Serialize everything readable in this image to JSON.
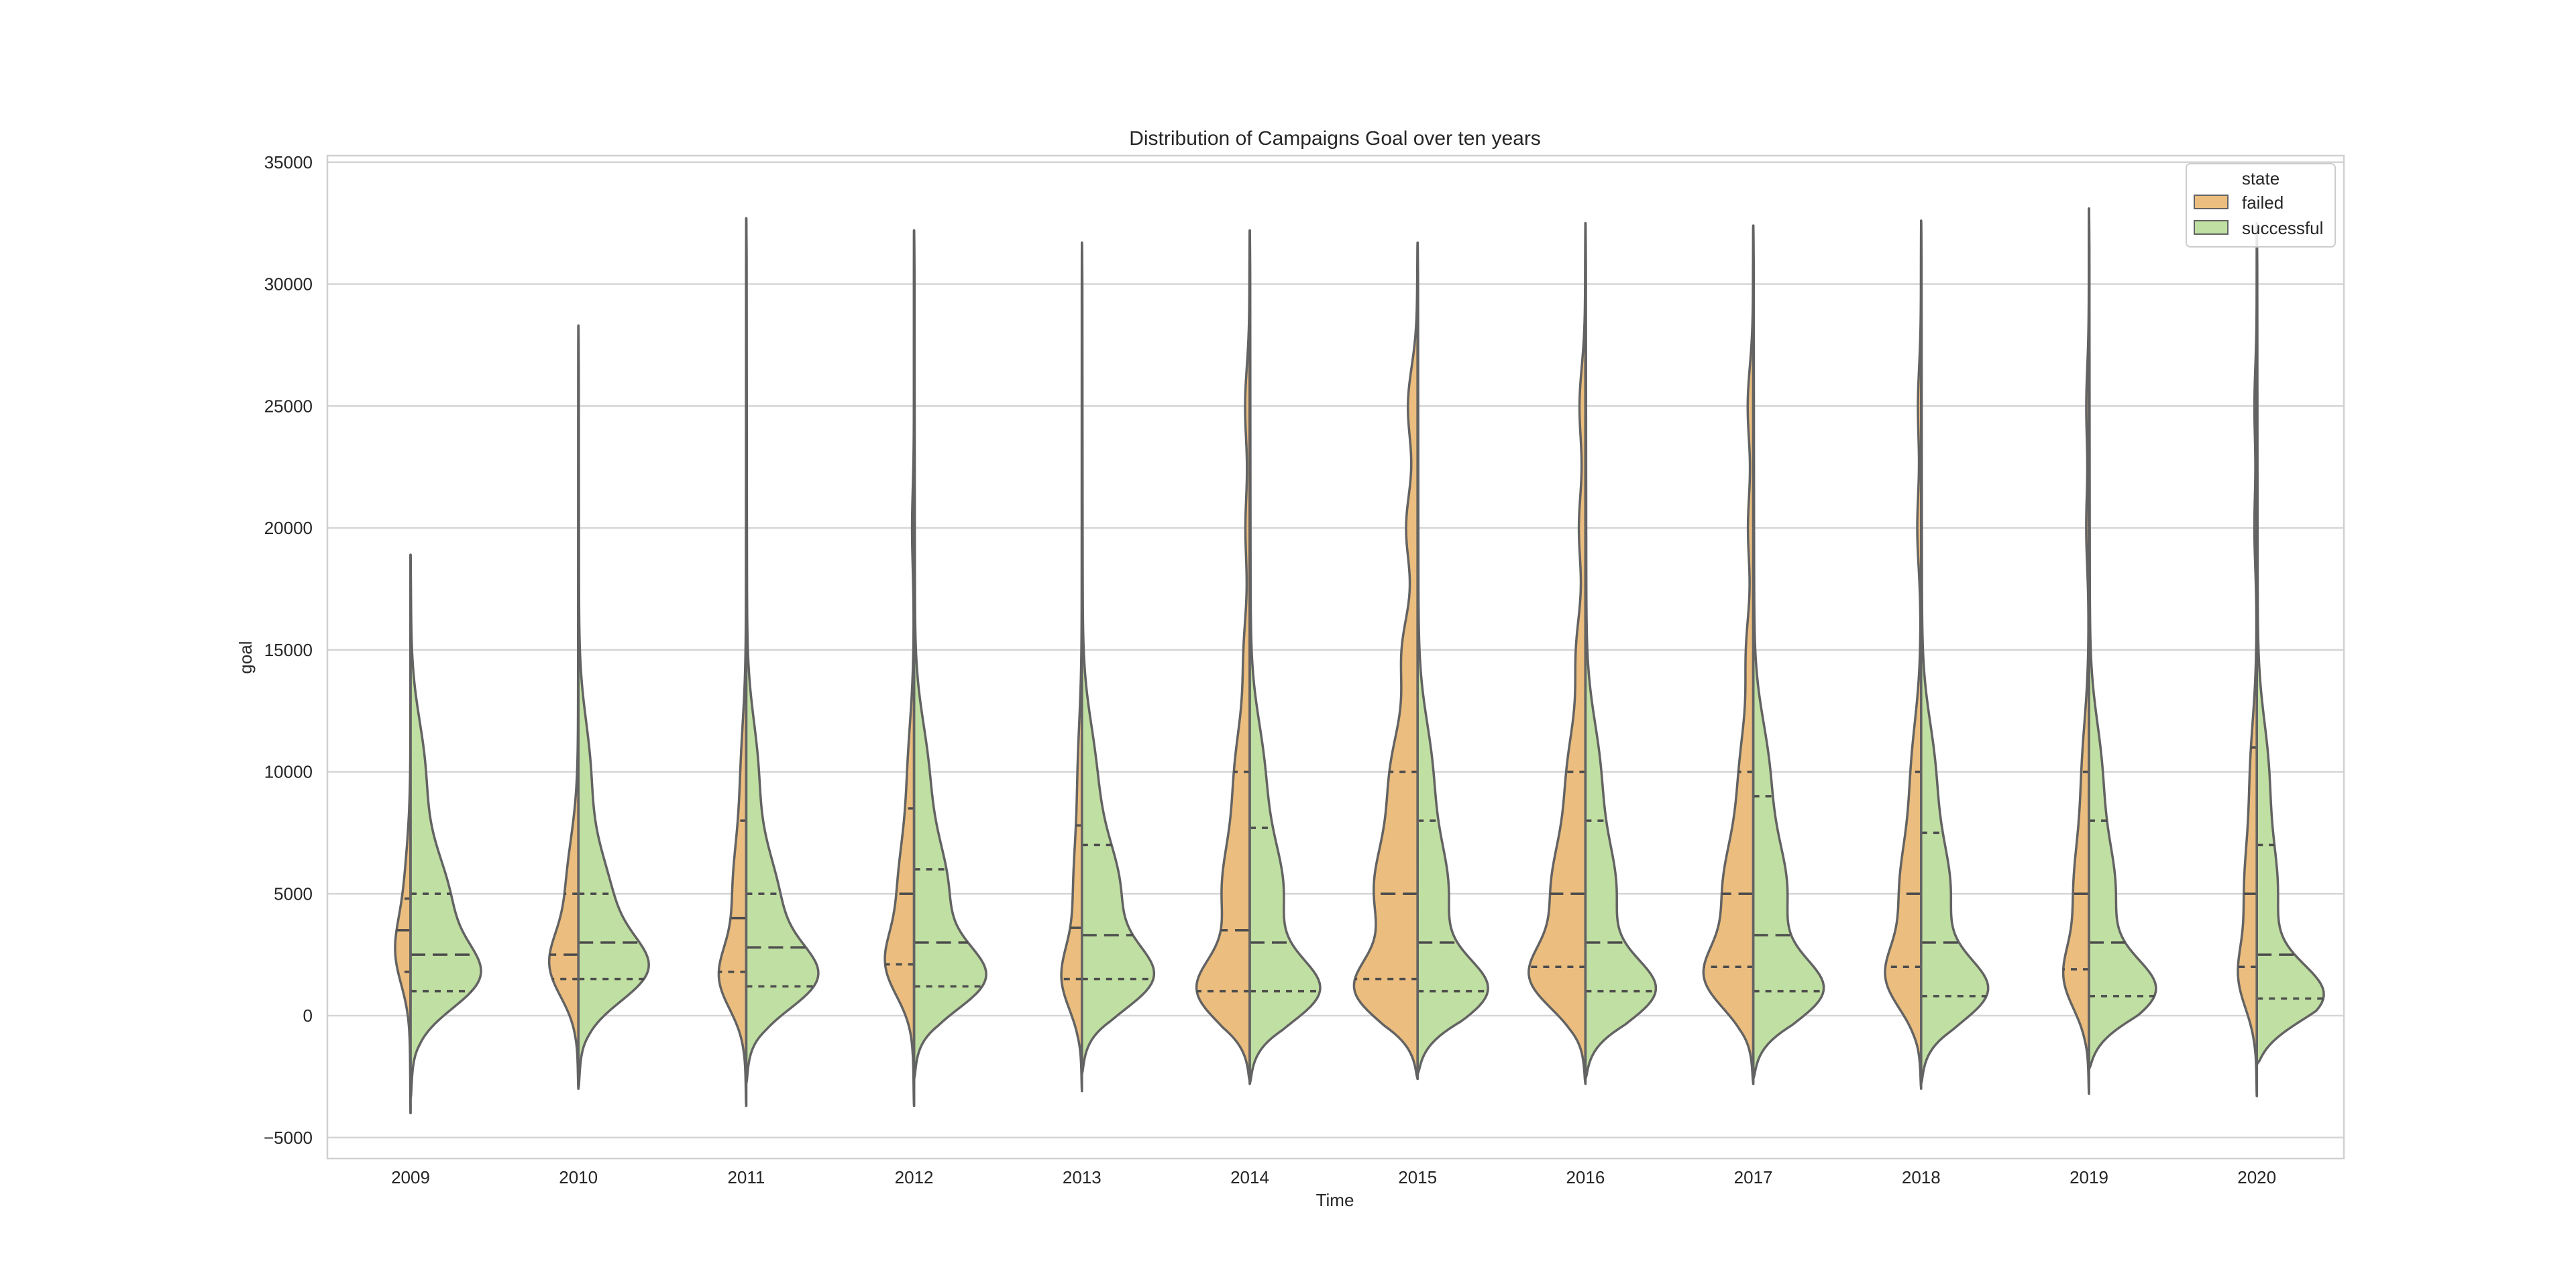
{
  "chart_data": {
    "type": "split-violin",
    "title": "Distribution of Campaigns Goal over ten years",
    "xlabel": "Time",
    "ylabel": "goal",
    "ylim": [
      -6000,
      35500
    ],
    "yticks": [
      -5000,
      0,
      5000,
      10000,
      15000,
      20000,
      25000,
      30000,
      35000
    ],
    "ytick_labels": [
      "−5000",
      "0",
      "5000",
      "10000",
      "15000",
      "20000",
      "25000",
      "30000",
      "35000"
    ],
    "grid": "horizontal",
    "legend": {
      "title": "state",
      "position": "top-right"
    },
    "colors": {
      "failed": "#ebbd7e",
      "successful": "#c0dfa2",
      "outline": "#636363",
      "grid": "#d5d5d5"
    },
    "categories": [
      "2009",
      "2010",
      "2011",
      "2012",
      "2013",
      "2014",
      "2015",
      "2016",
      "2017",
      "2018",
      "2019",
      "2020"
    ],
    "series": [
      {
        "name": "failed",
        "color": "#ebbd7e",
        "stats": [
          {
            "min": -4000,
            "max": 18900,
            "q1": 1800,
            "median": 3500,
            "q3": 4800,
            "peak_width": 0.09,
            "peaks": [
              [
                2500,
                1.0
              ],
              [
                4500,
                0.6
              ]
            ]
          },
          {
            "min": -3000,
            "max": 28300,
            "q1": 1500,
            "median": 2500,
            "q3": 5000,
            "peak_width": 0.17,
            "peaks": [
              [
                2000,
                1.0
              ],
              [
                5000,
                0.5
              ]
            ]
          },
          {
            "min": -3700,
            "max": 32700,
            "q1": 1800,
            "median": 4000,
            "q3": 8000,
            "peak_width": 0.16,
            "peaks": [
              [
                1500,
                1.0
              ],
              [
                5000,
                0.55
              ],
              [
                10000,
                0.2
              ]
            ]
          },
          {
            "min": -3700,
            "max": 32200,
            "q1": 2100,
            "median": 5000,
            "q3": 8500,
            "peak_width": 0.17,
            "peaks": [
              [
                2000,
                1.0
              ],
              [
                5000,
                0.7
              ],
              [
                10000,
                0.25
              ],
              [
                20000,
                0.08
              ]
            ]
          },
          {
            "min": -3100,
            "max": 31700,
            "q1": 1500,
            "median": 3600,
            "q3": 7800,
            "peak_width": 0.12,
            "peaks": [
              [
                1500,
                1.0
              ],
              [
                5000,
                0.45
              ],
              [
                10000,
                0.2
              ]
            ]
          },
          {
            "min": -2700,
            "max": 32200,
            "q1": 1000,
            "median": 3500,
            "q3": 10000,
            "peak_width": 0.31,
            "peaks": [
              [
                1000,
                1.0
              ],
              [
                5000,
                0.55
              ],
              [
                10000,
                0.28
              ],
              [
                15000,
                0.1
              ],
              [
                20000,
                0.08
              ],
              [
                25000,
                0.09
              ]
            ]
          },
          {
            "min": -2600,
            "max": 31700,
            "q1": 1500,
            "median": 5000,
            "q3": 10000,
            "peak_width": 0.37,
            "peaks": [
              [
                1000,
                1.0
              ],
              [
                5000,
                0.75
              ],
              [
                10000,
                0.45
              ],
              [
                15000,
                0.25
              ],
              [
                20000,
                0.2
              ],
              [
                25000,
                0.17
              ]
            ]
          },
          {
            "min": -2800,
            "max": 32500,
            "q1": 2000,
            "median": 5000,
            "q3": 10000,
            "peak_width": 0.33,
            "peaks": [
              [
                1500,
                1.0
              ],
              [
                5000,
                0.7
              ],
              [
                10000,
                0.35
              ],
              [
                15000,
                0.17
              ],
              [
                20000,
                0.13
              ],
              [
                25000,
                0.12
              ]
            ]
          },
          {
            "min": -2800,
            "max": 32400,
            "q1": 2000,
            "median": 5000,
            "q3": 10000,
            "peak_width": 0.29,
            "peaks": [
              [
                1500,
                1.0
              ],
              [
                5000,
                0.72
              ],
              [
                10000,
                0.3
              ],
              [
                15000,
                0.15
              ],
              [
                20000,
                0.12
              ],
              [
                25000,
                0.13
              ]
            ]
          },
          {
            "min": -3000,
            "max": 32600,
            "q1": 2000,
            "median": 5000,
            "q3": 10000,
            "peak_width": 0.21,
            "peaks": [
              [
                1500,
                1.0
              ],
              [
                5000,
                0.7
              ],
              [
                10000,
                0.3
              ],
              [
                20000,
                0.12
              ],
              [
                25000,
                0.1
              ]
            ]
          },
          {
            "min": -3200,
            "max": 33100,
            "q1": 1900,
            "median": 5000,
            "q3": 10000,
            "peak_width": 0.15,
            "peaks": [
              [
                1500,
                1.0
              ],
              [
                5000,
                0.7
              ],
              [
                10000,
                0.3
              ],
              [
                20000,
                0.12
              ],
              [
                25000,
                0.12
              ]
            ]
          },
          {
            "min": -3300,
            "max": 32500,
            "q1": 2000,
            "median": 5000,
            "q3": 11000,
            "peak_width": 0.11,
            "peaks": [
              [
                1500,
                1.0
              ],
              [
                5000,
                0.8
              ],
              [
                10000,
                0.4
              ],
              [
                20000,
                0.15
              ],
              [
                25000,
                0.15
              ]
            ]
          }
        ]
      },
      {
        "name": "successful",
        "color": "#c0dfa2",
        "stats": [
          {
            "min": -3400,
            "max": 18900,
            "q1": 1000,
            "median": 2500,
            "q3": 5000,
            "peak_width": 0.41,
            "peaks": [
              [
                1500,
                1.0
              ],
              [
                4500,
                0.72
              ],
              [
                10000,
                0.25
              ]
            ]
          },
          {
            "min": -3000,
            "max": 28300,
            "q1": 1500,
            "median": 3000,
            "q3": 5000,
            "peak_width": 0.41,
            "peaks": [
              [
                1800,
                1.0
              ],
              [
                4500,
                0.6
              ],
              [
                10000,
                0.2
              ]
            ]
          },
          {
            "min": -2800,
            "max": 32700,
            "q1": 1200,
            "median": 2800,
            "q3": 5000,
            "peak_width": 0.42,
            "peaks": [
              [
                1500,
                1.0
              ],
              [
                4500,
                0.55
              ],
              [
                10000,
                0.18
              ]
            ]
          },
          {
            "min": -2600,
            "max": 32200,
            "q1": 1200,
            "median": 3000,
            "q3": 6000,
            "peak_width": 0.42,
            "peaks": [
              [
                1500,
                1.0
              ],
              [
                5000,
                0.52
              ],
              [
                10000,
                0.2
              ]
            ]
          },
          {
            "min": -2400,
            "max": 31700,
            "q1": 1500,
            "median": 3300,
            "q3": 7000,
            "peak_width": 0.42,
            "peaks": [
              [
                1500,
                1.0
              ],
              [
                5000,
                0.6
              ],
              [
                10000,
                0.2
              ]
            ]
          },
          {
            "min": -2800,
            "max": 32200,
            "q1": 1000,
            "median": 3000,
            "q3": 7700,
            "peak_width": 0.41,
            "peaks": [
              [
                1000,
                1.0
              ],
              [
                5000,
                0.5
              ],
              [
                10000,
                0.2
              ]
            ]
          },
          {
            "min": -2400,
            "max": 31700,
            "q1": 1000,
            "median": 3000,
            "q3": 8000,
            "peak_width": 0.41,
            "peaks": [
              [
                1000,
                1.0
              ],
              [
                5000,
                0.45
              ],
              [
                10000,
                0.2
              ]
            ]
          },
          {
            "min": -2600,
            "max": 32500,
            "q1": 1000,
            "median": 3000,
            "q3": 8000,
            "peak_width": 0.41,
            "peaks": [
              [
                1000,
                1.0
              ],
              [
                5000,
                0.45
              ],
              [
                10000,
                0.2
              ]
            ]
          },
          {
            "min": -2600,
            "max": 32400,
            "q1": 1000,
            "median": 3300,
            "q3": 9000,
            "peak_width": 0.41,
            "peaks": [
              [
                1000,
                1.0
              ],
              [
                5000,
                0.5
              ],
              [
                10000,
                0.22
              ]
            ]
          },
          {
            "min": -2800,
            "max": 32600,
            "q1": 800,
            "median": 3000,
            "q3": 7500,
            "peak_width": 0.39,
            "peaks": [
              [
                1000,
                1.0
              ],
              [
                5000,
                0.45
              ],
              [
                10000,
                0.2
              ]
            ]
          },
          {
            "min": -2200,
            "max": 33100,
            "q1": 800,
            "median": 3000,
            "q3": 8000,
            "peak_width": 0.39,
            "peaks": [
              [
                1000,
                1.0
              ],
              [
                5000,
                0.4
              ],
              [
                10000,
                0.18
              ]
            ]
          },
          {
            "min": -2000,
            "max": 32500,
            "q1": 700,
            "median": 2500,
            "q3": 7000,
            "peak_width": 0.39,
            "peaks": [
              [
                800,
                1.0
              ],
              [
                5000,
                0.3
              ],
              [
                10000,
                0.16
              ]
            ]
          }
        ]
      }
    ]
  }
}
